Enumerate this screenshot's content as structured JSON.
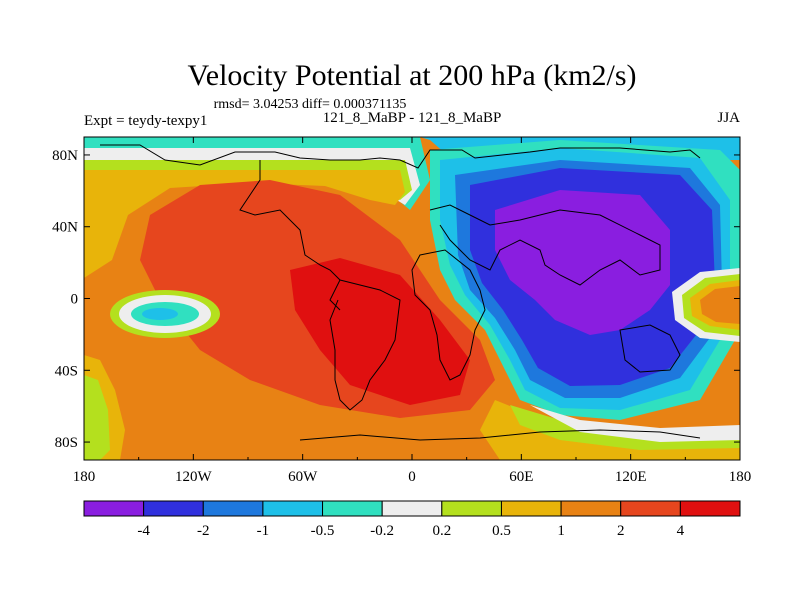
{
  "chart_data": {
    "type": "heatmap",
    "title": "Velocity Potential at 200 hPa (km2/s)",
    "subtitle": "rmsd= 3.04253 diff= 0.000371135",
    "left_string": "Expt = teydy-texpy1",
    "center_string": "121_8_MaBP - 121_8_MaBP",
    "right_string": "JJA",
    "xlim": [
      -180,
      180
    ],
    "ylim": [
      -90,
      90
    ],
    "x_ticks": [
      {
        "value": -180,
        "label": "180"
      },
      {
        "value": -120,
        "label": "120W"
      },
      {
        "value": -60,
        "label": "60W"
      },
      {
        "value": 0,
        "label": "0"
      },
      {
        "value": 60,
        "label": "60E"
      },
      {
        "value": 120,
        "label": "120E"
      },
      {
        "value": 180,
        "label": "180"
      }
    ],
    "y_ticks": [
      {
        "value": 80,
        "label": "80N"
      },
      {
        "value": 40,
        "label": "40N"
      },
      {
        "value": 0,
        "label": "0"
      },
      {
        "value": -40,
        "label": "40S"
      },
      {
        "value": -80,
        "label": "80S"
      }
    ],
    "colorbar": {
      "levels": [
        "-4",
        "-2",
        "-1",
        "-0.5",
        "-0.2",
        "0.2",
        "0.5",
        "1",
        "2",
        "4"
      ],
      "colors": [
        "#8a1ee0",
        "#3030dd",
        "#1e78dd",
        "#1ec0e8",
        "#30e0c0",
        "#eeeeee",
        "#b4e01e",
        "#e8b40a",
        "#e88214",
        "#e6461e",
        "#e01010"
      ]
    },
    "features": [
      {
        "name": "positive-center",
        "lon": -30,
        "lat": -10,
        "value": 4.5
      },
      {
        "name": "negative-center",
        "lon": 105,
        "lat": 20,
        "value": -4.5
      },
      {
        "name": "positive-east-pacific",
        "lon": 170,
        "lat": 0,
        "value": 1.5
      },
      {
        "name": "negative-east-pacific-spot",
        "lon": -140,
        "lat": -10,
        "value": -0.8
      }
    ]
  }
}
